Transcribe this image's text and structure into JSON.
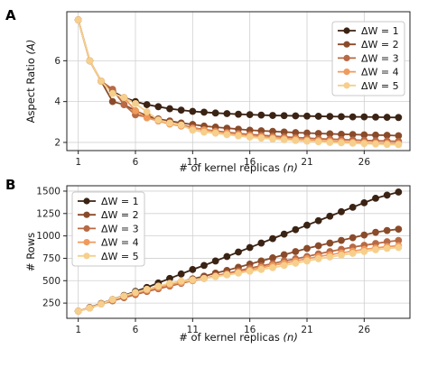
{
  "chart_data": [
    {
      "panel": "A",
      "type": "line",
      "xlabel": "# of kernel replicas",
      "xlabel_var": "(n)",
      "ylabel": "Aspect Ratio",
      "ylabel_var": "(A)",
      "xticks": [
        "1",
        "6",
        "11",
        "16",
        "21",
        "26"
      ],
      "yticks": [
        "2",
        "4",
        "6"
      ],
      "xlim": [
        0,
        30
      ],
      "ylim": [
        1.6,
        8.4
      ],
      "grid": true,
      "legend_position": "top-right",
      "x": [
        1,
        2,
        3,
        4,
        5,
        6,
        7,
        8,
        9,
        10,
        11,
        12,
        13,
        14,
        15,
        16,
        17,
        18,
        19,
        20,
        21,
        22,
        23,
        24,
        25,
        26,
        27,
        28,
        29
      ],
      "series": [
        {
          "name": "ΔW = 1",
          "color": "#3b2314",
          "values": [
            8.0,
            6.0,
            5.0,
            4.5,
            4.2,
            4.0,
            3.85,
            3.75,
            3.65,
            3.58,
            3.52,
            3.48,
            3.44,
            3.41,
            3.38,
            3.36,
            3.34,
            3.32,
            3.31,
            3.3,
            3.29,
            3.28,
            3.27,
            3.26,
            3.25,
            3.25,
            3.24,
            3.23,
            3.22
          ]
        },
        {
          "name": "ΔW = 2",
          "color": "#8a4b2a",
          "values": [
            8.0,
            6.0,
            5.0,
            4.0,
            3.85,
            3.55,
            3.3,
            3.15,
            3.05,
            2.95,
            2.88,
            2.8,
            2.75,
            2.7,
            2.65,
            2.6,
            2.57,
            2.54,
            2.51,
            2.48,
            2.46,
            2.44,
            2.42,
            2.4,
            2.39,
            2.37,
            2.36,
            2.35,
            2.33
          ]
        },
        {
          "name": "ΔW = 3",
          "color": "#b86a45",
          "values": [
            8.0,
            6.0,
            5.0,
            4.6,
            3.85,
            3.35,
            3.25,
            3.05,
            2.95,
            2.85,
            2.72,
            2.63,
            2.56,
            2.5,
            2.44,
            2.39,
            2.35,
            2.31,
            2.27,
            2.24,
            2.21,
            2.18,
            2.16,
            2.14,
            2.12,
            2.1,
            2.08,
            2.07,
            2.05
          ]
        },
        {
          "name": "ΔW = 4",
          "color": "#f09a5c",
          "values": [
            8.0,
            6.0,
            5.0,
            4.4,
            4.2,
            3.55,
            3.2,
            3.05,
            2.9,
            2.8,
            2.68,
            2.6,
            2.52,
            2.45,
            2.38,
            2.33,
            2.28,
            2.23,
            2.19,
            2.16,
            2.12,
            2.09,
            2.06,
            2.04,
            2.01,
            1.99,
            1.97,
            1.95,
            1.94
          ]
        },
        {
          "name": "ΔW = 5",
          "color": "#f6cf8c",
          "values": [
            8.0,
            6.0,
            5.0,
            4.4,
            4.2,
            3.9,
            3.5,
            3.1,
            2.95,
            2.85,
            2.6,
            2.5,
            2.45,
            2.38,
            2.32,
            2.26,
            2.21,
            2.17,
            2.13,
            2.09,
            2.06,
            2.03,
            2.0,
            1.98,
            1.96,
            1.94,
            1.92,
            1.9,
            1.89
          ]
        }
      ]
    },
    {
      "panel": "B",
      "type": "line",
      "xlabel": "# of kernel replicas",
      "xlabel_var": "(n)",
      "ylabel": "# Rows",
      "xticks": [
        "1",
        "6",
        "11",
        "16",
        "21",
        "26"
      ],
      "yticks": [
        "250",
        "500",
        "750",
        "1000",
        "1250",
        "1500"
      ],
      "xlim": [
        0,
        30
      ],
      "ylim": [
        80,
        1560
      ],
      "grid": true,
      "legend_position": "top-left",
      "x": [
        1,
        2,
        3,
        4,
        5,
        6,
        7,
        8,
        9,
        10,
        11,
        12,
        13,
        14,
        15,
        16,
        17,
        18,
        19,
        20,
        21,
        22,
        23,
        24,
        25,
        26,
        27,
        28,
        29
      ],
      "series": [
        {
          "name": "ΔW = 1",
          "color": "#3b2314",
          "values": [
            160,
            200,
            245,
            290,
            335,
            380,
            425,
            475,
            525,
            575,
            625,
            670,
            720,
            770,
            820,
            870,
            920,
            970,
            1020,
            1070,
            1120,
            1170,
            1220,
            1270,
            1320,
            1370,
            1420,
            1455,
            1490
          ]
        },
        {
          "name": "ΔW = 2",
          "color": "#8a4b2a",
          "values": [
            160,
            200,
            245,
            290,
            330,
            360,
            395,
            430,
            460,
            490,
            520,
            550,
            585,
            615,
            650,
            685,
            720,
            755,
            790,
            825,
            860,
            890,
            920,
            950,
            980,
            1010,
            1040,
            1060,
            1075
          ]
        },
        {
          "name": "ΔW = 3",
          "color": "#b86a45",
          "values": [
            160,
            195,
            240,
            275,
            310,
            345,
            380,
            410,
            440,
            470,
            500,
            525,
            555,
            580,
            610,
            640,
            665,
            690,
            720,
            745,
            770,
            800,
            825,
            850,
            875,
            895,
            915,
            935,
            950
          ]
        },
        {
          "name": "ΔW = 4",
          "color": "#f09a5c",
          "values": [
            160,
            195,
            240,
            285,
            325,
            360,
            395,
            425,
            455,
            480,
            500,
            525,
            550,
            570,
            595,
            620,
            645,
            670,
            695,
            720,
            745,
            770,
            790,
            810,
            830,
            850,
            865,
            880,
            890
          ]
        },
        {
          "name": "ΔW = 5",
          "color": "#f6cf8c",
          "values": [
            160,
            195,
            240,
            290,
            330,
            370,
            405,
            440,
            470,
            495,
            510,
            525,
            545,
            565,
            585,
            605,
            625,
            645,
            670,
            695,
            720,
            745,
            765,
            785,
            805,
            825,
            845,
            860,
            870
          ]
        }
      ]
    }
  ]
}
